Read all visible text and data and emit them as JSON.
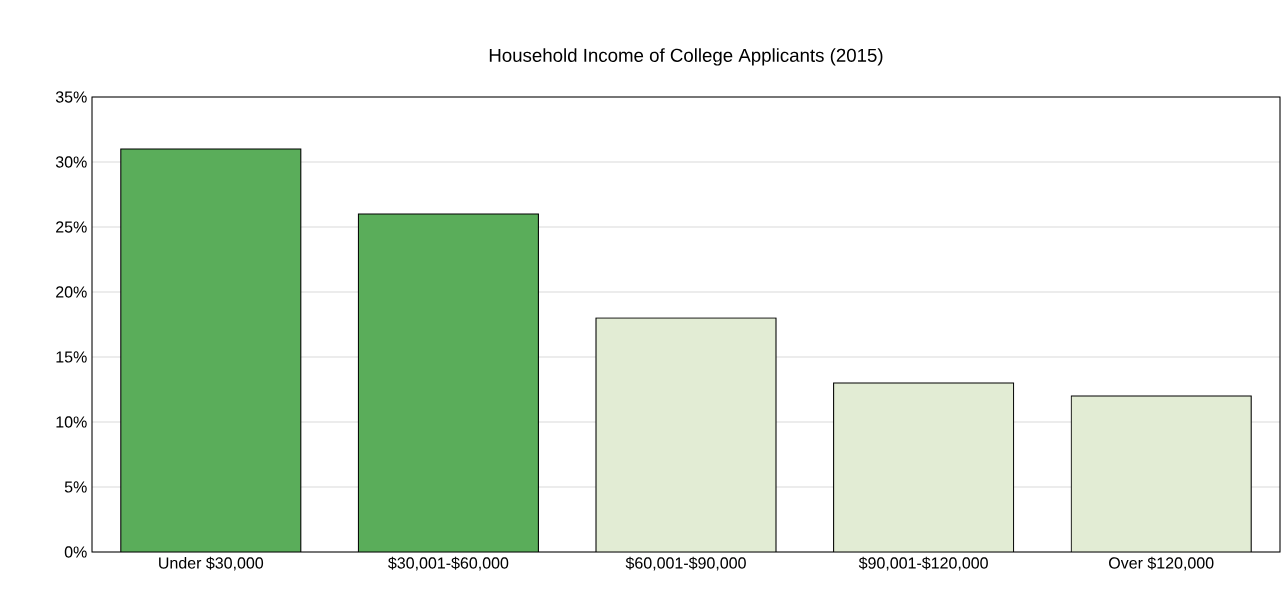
{
  "chart_data": {
    "type": "bar",
    "title": "Household Income of College Applicants (2015)",
    "categories": [
      "Under $30,000",
      "$30,001-$60,000",
      "$60,001-$90,000",
      "$90,001-$120,000",
      "Over $120,000"
    ],
    "values": [
      31,
      26,
      18,
      13,
      12
    ],
    "colors": [
      "#5aad5a",
      "#5aad5a",
      "#e2ecd4",
      "#e2ecd4",
      "#e2ecd4"
    ],
    "ylim": [
      0,
      35
    ],
    "yticks": [
      {
        "value": 0,
        "label": "0%"
      },
      {
        "value": 5,
        "label": "5%"
      },
      {
        "value": 10,
        "label": "10%"
      },
      {
        "value": 15,
        "label": "15%"
      },
      {
        "value": 20,
        "label": "20%"
      },
      {
        "value": 25,
        "label": "25%"
      },
      {
        "value": 30,
        "label": "30%"
      },
      {
        "value": 35,
        "label": "35%"
      }
    ],
    "grid": "y"
  }
}
